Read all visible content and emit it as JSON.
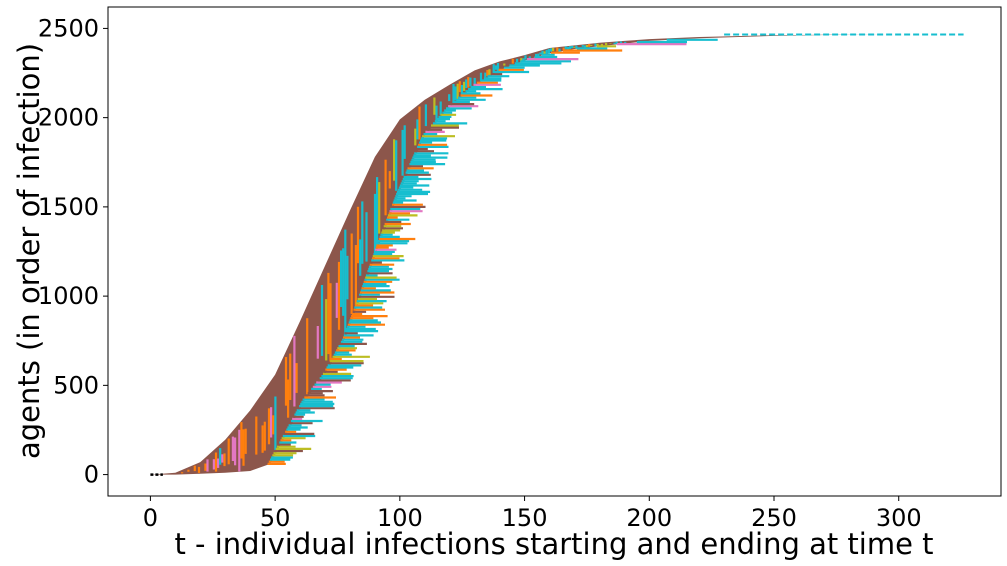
{
  "chart_data": {
    "type": "line",
    "title": "",
    "xlabel": "t - individual infections starting and ending at time t",
    "ylabel": "agents (in order of infection)",
    "xlim": [
      -17,
      341
    ],
    "ylim": [
      -120,
      2620
    ],
    "xticks": [
      0,
      50,
      100,
      150,
      200,
      250,
      300
    ],
    "yticks": [
      0,
      500,
      1000,
      1500,
      2000,
      2500
    ],
    "grid": false,
    "legend": "none",
    "n_agents": 2470,
    "palette": [
      "#8c564b",
      "#17becf",
      "#ff7f0e",
      "#bcbd22",
      "#e377c2",
      "#7f7f7f",
      "#1f77b4",
      "#2ca02c"
    ],
    "series": [
      {
        "x": [
          0,
          10,
          20,
          30,
          40,
          50,
          60,
          70,
          80,
          90,
          100,
          110,
          120,
          130,
          140,
          150,
          160,
          170,
          180,
          190,
          200,
          220,
          250,
          280,
          300,
          326
        ],
        "values": [
          0,
          10,
          70,
          195,
          360,
          560,
          860,
          1170,
          1480,
          1780,
          1990,
          2100,
          2185,
          2265,
          2315,
          2350,
          2390,
          2405,
          2420,
          2430,
          2440,
          2452,
          2462,
          2466,
          2468,
          2470
        ]
      },
      {
        "x": [
          0,
          10,
          20,
          30,
          40,
          48,
          55,
          62,
          70,
          78,
          85,
          92,
          100,
          110,
          120,
          130,
          140,
          150,
          160,
          170,
          180,
          190,
          200,
          220,
          250,
          280,
          300,
          326
        ],
        "values": [
          0,
          0,
          5,
          10,
          20,
          60,
          240,
          420,
          560,
          760,
          1020,
          1300,
          1590,
          1900,
          2060,
          2180,
          2265,
          2320,
          2360,
          2385,
          2400,
          2415,
          2430,
          2445,
          2458,
          2465,
          2468,
          2470
        ]
      }
    ]
  }
}
